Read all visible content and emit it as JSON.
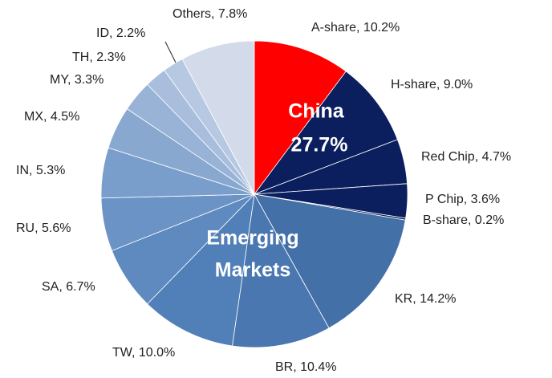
{
  "chart_data": {
    "type": "pie",
    "categories": [
      "A-share",
      "H-share",
      "Red Chip",
      "P Chip",
      "B-share",
      "KR",
      "BR",
      "TW",
      "SA",
      "RU",
      "IN",
      "MX",
      "MY",
      "TH",
      "ID",
      "Others"
    ],
    "values": [
      10.2,
      9.0,
      4.7,
      3.6,
      0.2,
      14.2,
      10.4,
      10.0,
      6.7,
      5.6,
      5.3,
      4.5,
      3.3,
      2.3,
      2.2,
      7.8
    ],
    "value_labels": [
      "A-share, 10.2%",
      "H-share, 9.0%",
      "Red Chip, 4.7%",
      "P Chip, 3.6%",
      "B-share, 0.2%",
      "KR, 14.2%",
      "BR, 10.4%",
      "TW, 10.0%",
      "SA, 6.7%",
      "RU, 5.6%",
      "IN, 5.3%",
      "MX, 4.5%",
      "MY, 3.3%",
      "TH, 2.3%",
      "ID, 2.2%",
      "Others, 7.8%"
    ],
    "colors": [
      "#ff0000",
      "#0b1f5e",
      "#0b1f5e",
      "#0b1f5e",
      "#0b1f5e",
      "#4470a8",
      "#4a77b0",
      "#517fb8",
      "#5f8ac0",
      "#6b93c5",
      "#7a9ecb",
      "#88a8d0",
      "#98b3d6",
      "#a8bedc",
      "#b6c8e2",
      "#d3dbea"
    ],
    "annotations": [
      "China",
      "27.7%",
      "Emerging",
      "Markets"
    ]
  }
}
